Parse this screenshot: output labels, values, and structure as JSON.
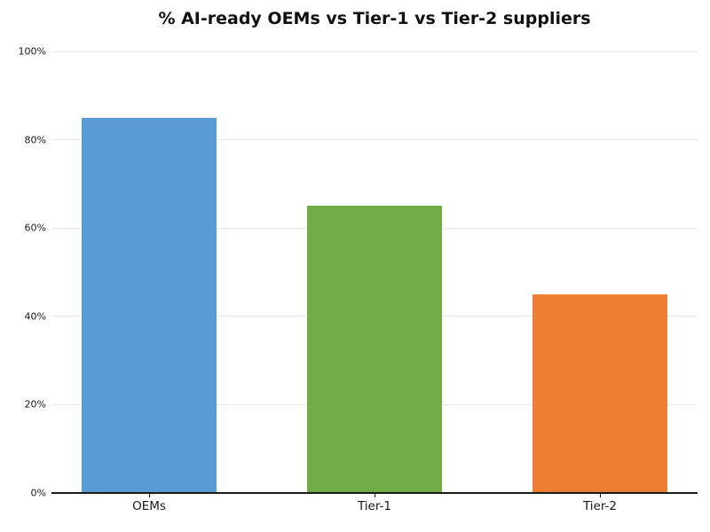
{
  "chart_data": {
    "type": "bar",
    "title": "% AI-ready OEMs vs Tier-1 vs Tier-2 suppliers",
    "categories": [
      "OEMs",
      "Tier-1",
      "Tier-2"
    ],
    "values": [
      85,
      65,
      45
    ],
    "unit": "%",
    "xlabel": "",
    "ylabel": "",
    "ylim": [
      0,
      100
    ],
    "yticks": [
      0,
      20,
      40,
      60,
      80,
      100
    ],
    "ytick_labels": [
      "0%",
      "20%",
      "40%",
      "60%",
      "80%",
      "100%"
    ],
    "bar_colors": [
      "#5B9BD5",
      "#70AD47",
      "#ED7D31"
    ],
    "grid": "horizontal-major-only",
    "legend_position": "none",
    "colors": {
      "background": "#ffffff",
      "gridline": "#e8e8e8",
      "axis": "#1a1a1a",
      "title_text": "#111111",
      "tick_text": "#1a1a1a"
    }
  }
}
